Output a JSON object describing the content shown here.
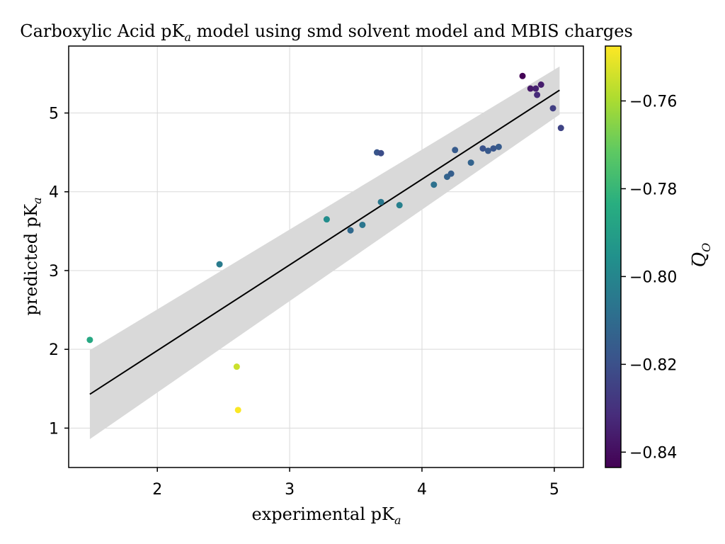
{
  "chart_data": {
    "type": "scatter",
    "title": "Carboxylic Acid pK",
    "title_sub": "a",
    "title_rest": " model using smd solvent model and MBIS charges",
    "xlabel": "experimental pK",
    "xlabel_sub": "a",
    "ylabel": "predicted pK",
    "ylabel_sub": "a",
    "xlim": [
      1.33,
      5.22
    ],
    "ylim": [
      0.5,
      5.85
    ],
    "xticks": [
      2,
      3,
      4,
      5
    ],
    "yticks": [
      1,
      2,
      3,
      4,
      5
    ],
    "grid": true,
    "colorbar": {
      "label": "Q",
      "label_sub": "O",
      "label_sub_bar": "−",
      "colormap": "viridis",
      "range": [
        -0.8435,
        -0.7475
      ],
      "ticks": [
        -0.76,
        -0.78,
        -0.8,
        -0.82,
        -0.84
      ],
      "tick_labels": [
        "−0.76",
        "−0.78",
        "−0.80",
        "−0.82",
        "−0.84"
      ]
    },
    "regression": {
      "x_start": 1.49,
      "x_end": 5.04,
      "y_start": 1.43,
      "y_end": 5.29,
      "ci_lower": [
        0.86,
        4.98
      ],
      "ci_upper": [
        1.99,
        5.59
      ],
      "color": "#000000",
      "band_color": "#d9d9d9"
    },
    "points": [
      {
        "x": 1.49,
        "y": 2.12,
        "c": -0.786
      },
      {
        "x": 2.47,
        "y": 3.08,
        "c": -0.804
      },
      {
        "x": 2.6,
        "y": 1.78,
        "c": -0.755
      },
      {
        "x": 2.61,
        "y": 1.23,
        "c": -0.748
      },
      {
        "x": 3.28,
        "y": 3.65,
        "c": -0.797
      },
      {
        "x": 3.46,
        "y": 3.51,
        "c": -0.811
      },
      {
        "x": 3.55,
        "y": 3.58,
        "c": -0.806
      },
      {
        "x": 3.66,
        "y": 4.5,
        "c": -0.818
      },
      {
        "x": 3.69,
        "y": 4.49,
        "c": -0.821
      },
      {
        "x": 3.69,
        "y": 3.87,
        "c": -0.805
      },
      {
        "x": 3.83,
        "y": 3.83,
        "c": -0.802
      },
      {
        "x": 4.09,
        "y": 4.09,
        "c": -0.808
      },
      {
        "x": 4.19,
        "y": 4.19,
        "c": -0.813
      },
      {
        "x": 4.22,
        "y": 4.23,
        "c": -0.815
      },
      {
        "x": 4.25,
        "y": 4.53,
        "c": -0.816
      },
      {
        "x": 4.37,
        "y": 4.37,
        "c": -0.813
      },
      {
        "x": 4.46,
        "y": 4.55,
        "c": -0.819
      },
      {
        "x": 4.5,
        "y": 4.52,
        "c": -0.817
      },
      {
        "x": 4.54,
        "y": 4.55,
        "c": -0.818
      },
      {
        "x": 4.58,
        "y": 4.57,
        "c": -0.816
      },
      {
        "x": 4.76,
        "y": 5.47,
        "c": -0.843
      },
      {
        "x": 4.82,
        "y": 5.31,
        "c": -0.837
      },
      {
        "x": 4.86,
        "y": 5.31,
        "c": -0.835
      },
      {
        "x": 4.87,
        "y": 5.23,
        "c": -0.832
      },
      {
        "x": 4.9,
        "y": 5.36,
        "c": -0.836
      },
      {
        "x": 4.99,
        "y": 5.06,
        "c": -0.826
      },
      {
        "x": 5.05,
        "y": 4.81,
        "c": -0.824
      }
    ]
  }
}
